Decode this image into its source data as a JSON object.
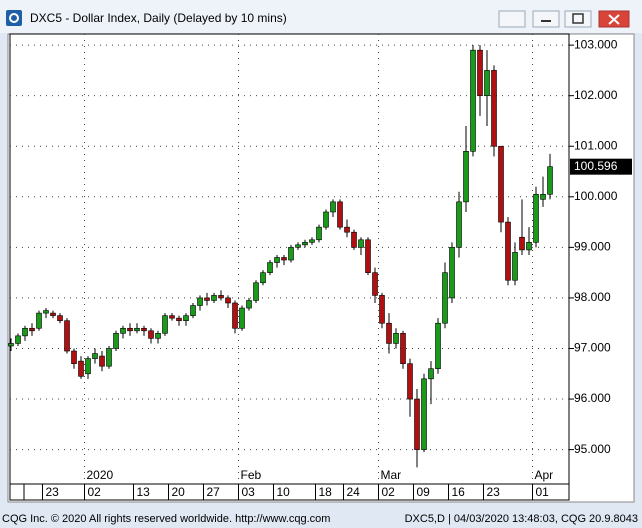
{
  "window": {
    "title": "DXC5 - Dollar Index, Daily (Delayed by 10 mins)"
  },
  "footer": {
    "left": "CQG Inc. © 2020 All rights reserved worldwide. http://www.cqg.com",
    "right": "DXC5,D | 04/03/2020 13:48:03, CQG 20.9.8043"
  },
  "chart_data": {
    "type": "candlestick",
    "up_color": "#1a9a1a",
    "down_color": "#b01010",
    "grid": true,
    "categories": [
      null,
      null,
      null,
      null,
      null,
      "23",
      null,
      null,
      null,
      null,
      null,
      "02",
      null,
      null,
      null,
      null,
      null,
      null,
      "13",
      null,
      null,
      null,
      null,
      "20",
      null,
      null,
      null,
      null,
      "27",
      null,
      null,
      null,
      null,
      "03",
      null,
      null,
      null,
      null,
      "10",
      null,
      null,
      null,
      null,
      null,
      "18",
      null,
      null,
      null,
      "24",
      null,
      null,
      null,
      null,
      "02",
      null,
      null,
      null,
      null,
      "09",
      null,
      null,
      null,
      null,
      "16",
      null,
      null,
      null,
      null,
      "23",
      null,
      null,
      null,
      null,
      null,
      null,
      "01",
      null,
      null
    ],
    "month_labels": [
      null,
      null,
      null,
      null,
      null,
      null,
      null,
      null,
      null,
      null,
      null,
      "2020",
      null,
      null,
      null,
      null,
      null,
      null,
      null,
      null,
      null,
      null,
      null,
      null,
      null,
      null,
      null,
      null,
      null,
      null,
      null,
      null,
      null,
      "Feb",
      null,
      null,
      null,
      null,
      null,
      null,
      null,
      null,
      null,
      null,
      null,
      null,
      null,
      null,
      null,
      null,
      null,
      null,
      null,
      "Mar",
      null,
      null,
      null,
      null,
      null,
      null,
      null,
      null,
      null,
      null,
      null,
      null,
      null,
      null,
      null,
      null,
      null,
      null,
      null,
      null,
      null,
      "Apr",
      null,
      null
    ],
    "open": [
      97.05,
      97.1,
      97.25,
      97.4,
      97.4,
      97.7,
      97.7,
      97.65,
      97.55,
      96.95,
      96.75,
      96.5,
      96.8,
      96.85,
      96.65,
      97.0,
      97.3,
      97.4,
      97.35,
      97.4,
      97.35,
      97.2,
      97.3,
      97.65,
      97.6,
      97.55,
      97.65,
      97.85,
      98.0,
      97.95,
      98.05,
      98.0,
      97.9,
      97.4,
      97.8,
      97.95,
      98.3,
      98.5,
      98.7,
      98.8,
      98.75,
      99.0,
      99.05,
      99.1,
      99.15,
      99.4,
      99.7,
      99.9,
      99.4,
      99.3,
      99.0,
      99.15,
      98.5,
      98.05,
      97.5,
      97.1,
      97.3,
      96.7,
      96.0,
      95.0,
      96.4,
      96.6,
      97.5,
      98.0,
      99.0,
      99.9,
      100.9,
      102.9,
      102.0,
      102.5,
      101.0,
      99.5,
      98.35,
      99.2,
      98.95,
      99.1,
      99.95,
      100.05
    ],
    "high": [
      97.2,
      97.3,
      97.45,
      97.5,
      97.75,
      97.8,
      97.75,
      97.7,
      97.6,
      97.0,
      96.85,
      96.85,
      97.0,
      96.95,
      97.05,
      97.35,
      97.45,
      97.5,
      97.5,
      97.45,
      97.4,
      97.35,
      97.7,
      97.7,
      97.65,
      97.7,
      97.9,
      98.05,
      98.1,
      98.1,
      98.15,
      98.05,
      97.95,
      97.85,
      98.0,
      98.35,
      98.55,
      98.75,
      98.85,
      98.85,
      99.05,
      99.1,
      99.15,
      99.2,
      99.45,
      99.75,
      99.95,
      99.95,
      99.55,
      99.35,
      99.2,
      99.2,
      98.6,
      98.1,
      97.7,
      97.4,
      97.35,
      96.8,
      96.2,
      96.5,
      96.75,
      97.6,
      98.7,
      99.1,
      100.1,
      101.4,
      103.0,
      103.0,
      102.9,
      102.6,
      101.0,
      99.6,
      99.1,
      99.95,
      99.4,
      100.2,
      100.4,
      100.85
    ],
    "low": [
      96.95,
      97.05,
      97.15,
      97.25,
      97.35,
      97.6,
      97.6,
      97.5,
      96.9,
      96.6,
      96.4,
      96.4,
      96.7,
      96.55,
      96.6,
      96.95,
      97.2,
      97.25,
      97.3,
      97.25,
      97.1,
      97.1,
      97.25,
      97.55,
      97.45,
      97.45,
      97.6,
      97.75,
      97.85,
      97.9,
      97.95,
      97.8,
      97.3,
      97.35,
      97.75,
      97.9,
      98.25,
      98.45,
      98.6,
      98.65,
      98.7,
      98.95,
      99.0,
      99.05,
      99.1,
      99.35,
      99.6,
      99.35,
      99.2,
      98.95,
      98.85,
      98.45,
      97.9,
      97.4,
      96.9,
      97.0,
      96.6,
      95.65,
      94.65,
      94.95,
      95.9,
      96.5,
      97.4,
      97.9,
      98.8,
      99.7,
      100.8,
      101.6,
      101.4,
      100.8,
      99.3,
      98.25,
      98.25,
      98.85,
      98.85,
      99.0,
      99.8,
      99.95
    ],
    "close": [
      97.1,
      97.25,
      97.4,
      97.35,
      97.7,
      97.75,
      97.65,
      97.55,
      96.95,
      96.7,
      96.45,
      96.8,
      96.9,
      96.65,
      97.0,
      97.3,
      97.4,
      97.35,
      97.4,
      97.35,
      97.2,
      97.3,
      97.65,
      97.6,
      97.55,
      97.65,
      97.85,
      98.0,
      97.95,
      98.05,
      98.0,
      97.9,
      97.4,
      97.8,
      97.95,
      98.3,
      98.5,
      98.7,
      98.8,
      98.75,
      99.0,
      99.05,
      99.1,
      99.15,
      99.4,
      99.7,
      99.9,
      99.4,
      99.3,
      99.0,
      99.15,
      98.5,
      98.05,
      97.5,
      97.1,
      97.3,
      96.7,
      96.0,
      95.0,
      96.4,
      96.6,
      97.5,
      98.5,
      99.0,
      99.9,
      100.9,
      102.9,
      102.0,
      102.5,
      101.0,
      99.5,
      98.35,
      98.9,
      98.95,
      99.1,
      100.05,
      100.05,
      100.596
    ],
    "ylim": [
      94.32,
      103.22
    ],
    "yticks": [
      {
        "value": 95,
        "label": "95.000"
      },
      {
        "value": 96,
        "label": "96.000"
      },
      {
        "value": 97,
        "label": "97.000"
      },
      {
        "value": 98,
        "label": "98.000"
      },
      {
        "value": 99,
        "label": "99.000"
      },
      {
        "value": 100,
        "label": "100.000"
      },
      {
        "value": 101,
        "label": "101.000"
      },
      {
        "value": 102,
        "label": "102.000"
      },
      {
        "value": 103,
        "label": "103.000"
      }
    ]
  }
}
